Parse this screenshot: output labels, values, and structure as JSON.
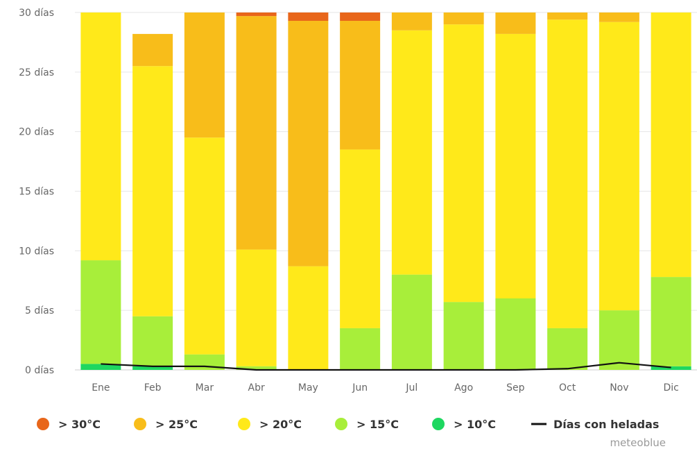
{
  "chart_data": {
    "type": "bar",
    "stacked": true,
    "categories": [
      "Ene",
      "Feb",
      "Mar",
      "Abr",
      "May",
      "Jun",
      "Jul",
      "Ago",
      "Sep",
      "Oct",
      "Nov",
      "Dic"
    ],
    "y_tick_labels": [
      "0 días",
      "5 días",
      "10 días",
      "15 días",
      "20 días",
      "25 días",
      "30 días"
    ],
    "ylim": [
      0,
      30
    ],
    "grid": true,
    "legend_position": "bottom",
    "series": [
      {
        "name": "> 10°C",
        "color": "#1ed760",
        "values": [
          0.5,
          0.3,
          0.0,
          0.0,
          0.0,
          0.0,
          0.0,
          0.0,
          0.0,
          0.0,
          0.0,
          0.3
        ]
      },
      {
        "name": "> 15°C",
        "color": "#a8ee3a",
        "values": [
          8.7,
          4.2,
          1.3,
          0.3,
          0.0,
          3.5,
          8.0,
          5.7,
          6.0,
          3.5,
          5.0,
          7.5
        ]
      },
      {
        "name": "> 20°C",
        "color": "#ffe91a",
        "values": [
          20.8,
          21.0,
          18.2,
          9.8,
          8.7,
          15.0,
          20.5,
          23.3,
          22.2,
          25.9,
          24.2,
          22.2
        ]
      },
      {
        "name": "> 25°C",
        "color": "#f8bd1a",
        "values": [
          0.0,
          2.7,
          10.5,
          19.6,
          20.6,
          10.8,
          1.5,
          1.0,
          1.8,
          0.6,
          0.8,
          0.0
        ]
      },
      {
        "name": "> 30°C",
        "color": "#e8661a",
        "values": [
          0.0,
          0.0,
          0.0,
          0.3,
          0.7,
          0.7,
          0.0,
          0.0,
          0.0,
          0.0,
          0.0,
          0.0
        ]
      }
    ],
    "line_series": {
      "name": "Días con heladas",
      "color": "#111111",
      "values": [
        0.5,
        0.3,
        0.3,
        0.0,
        0.0,
        0.0,
        0.0,
        0.0,
        0.0,
        0.1,
        0.6,
        0.2
      ]
    }
  },
  "legend": {
    "items": [
      {
        "label": "> 30°C",
        "color": "#e8661a",
        "kind": "dot"
      },
      {
        "label": "> 25°C",
        "color": "#f8bd1a",
        "kind": "dot"
      },
      {
        "label": "> 20°C",
        "color": "#ffe91a",
        "kind": "dot"
      },
      {
        "label": "> 15°C",
        "color": "#a8ee3a",
        "kind": "dot"
      },
      {
        "label": "> 10°C",
        "color": "#1ed760",
        "kind": "dot"
      },
      {
        "label": "Días con heladas",
        "color": "#111111",
        "kind": "line"
      }
    ]
  },
  "credit": "meteoblue"
}
